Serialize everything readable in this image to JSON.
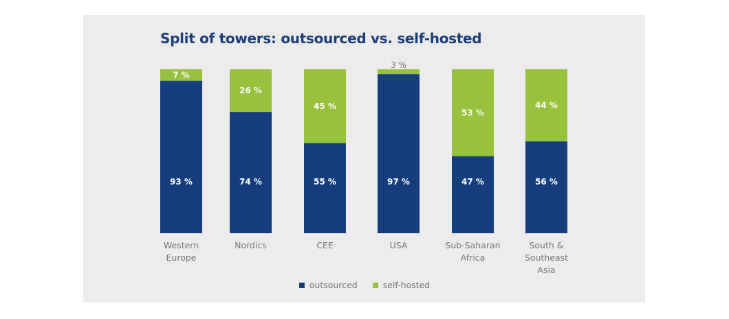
{
  "chart_data": {
    "type": "bar",
    "stacked": true,
    "title": "Split of towers: outsourced vs. self-hosted",
    "categories": [
      [
        "Western",
        "Europe"
      ],
      [
        "Nordics"
      ],
      [
        "CEE"
      ],
      [
        "USA"
      ],
      [
        "Sub-Saharan",
        "Africa"
      ],
      [
        "South &",
        "Southeast",
        "Asia"
      ]
    ],
    "series": [
      {
        "name": "outsourced",
        "color": "#163d7c",
        "values": [
          93,
          74,
          55,
          97,
          47,
          56
        ]
      },
      {
        "name": "self-hosted",
        "color": "#96c23c",
        "values": [
          7,
          26,
          45,
          3,
          53,
          44
        ]
      }
    ],
    "value_suffix": " %",
    "ylim": [
      0,
      100
    ],
    "grid": false,
    "legend_position": "bottom"
  }
}
